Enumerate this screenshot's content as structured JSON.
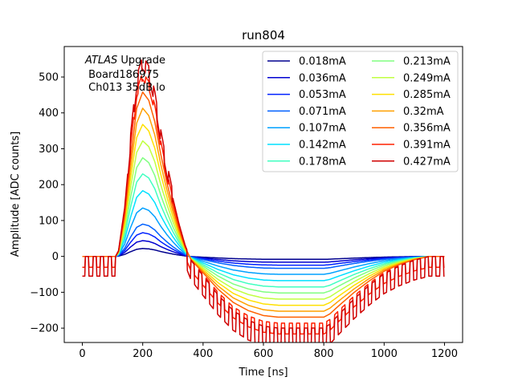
{
  "chart_data": {
    "type": "line",
    "title": "run804",
    "xlabel": "Time [ns]",
    "ylabel": "Amplitude [ADC counts]",
    "xlim": [
      -60,
      1260
    ],
    "ylim": [
      -240,
      585
    ],
    "xticks": [
      0,
      200,
      400,
      600,
      800,
      1000,
      1200
    ],
    "yticks": [
      -200,
      -100,
      0,
      100,
      200,
      300,
      400,
      500
    ],
    "xtick_labels": [
      "0",
      "200",
      "400",
      "600",
      "800",
      "1000",
      "1200"
    ],
    "ytick_labels": [
      "−200",
      "−100",
      "0",
      "100",
      "200",
      "300",
      "400",
      "500"
    ],
    "annotation": {
      "italic": "ATLAS",
      "rest": " Upgrade",
      "line2": " Board186975",
      "line3": " Ch013 35dB lo"
    },
    "legend_placement": "top-right",
    "legend_columns": 2,
    "grid": false,
    "shape": {
      "description": "pulse shape: positive peak near 200 ns, undershoot minimum near 600-800 ns, recovery to 0 by ~1150 ns",
      "x": [
        0,
        110,
        120,
        140,
        160,
        180,
        200,
        220,
        240,
        260,
        280,
        300,
        320,
        340,
        360,
        380,
        400,
        450,
        500,
        550,
        600,
        650,
        700,
        750,
        800,
        820,
        850,
        900,
        950,
        1000,
        1050,
        1100,
        1150,
        1200
      ],
      "y": [
        0,
        0,
        0.03,
        0.25,
        0.6,
        0.9,
        1.0,
        0.95,
        0.82,
        0.62,
        0.45,
        0.3,
        0.17,
        0.06,
        -0.02,
        -0.06,
        -0.1,
        -0.2,
        -0.28,
        -0.33,
        -0.36,
        -0.37,
        -0.37,
        -0.37,
        -0.37,
        -0.35,
        -0.3,
        -0.22,
        -0.15,
        -0.09,
        -0.05,
        -0.02,
        0,
        0
      ]
    },
    "series": [
      {
        "name": "0.018mA",
        "color": "#00008f",
        "peak": 22
      },
      {
        "name": "0.036mA",
        "color": "#0000d0",
        "peak": 44
      },
      {
        "name": "0.053mA",
        "color": "#0020ff",
        "peak": 66
      },
      {
        "name": "0.071mA",
        "color": "#0060ff",
        "peak": 90
      },
      {
        "name": "0.107mA",
        "color": "#00a0ff",
        "peak": 135
      },
      {
        "name": "0.142mA",
        "color": "#00e0ff",
        "peak": 183
      },
      {
        "name": "0.178mA",
        "color": "#40ffc0",
        "peak": 230
      },
      {
        "name": "0.213mA",
        "color": "#80ff80",
        "peak": 275
      },
      {
        "name": "0.249mA",
        "color": "#c0ff40",
        "peak": 322
      },
      {
        "name": "0.285mA",
        "color": "#ffe000",
        "peak": 368
      },
      {
        "name": "0.32mA",
        "color": "#ffa000",
        "peak": 413
      },
      {
        "name": "0.356mA",
        "color": "#ff6000",
        "peak": 458
      },
      {
        "name": "0.391mA",
        "color": "#ff2000",
        "peak": 503
      },
      {
        "name": "0.427mA",
        "color": "#d00000",
        "peak": 540
      }
    ]
  }
}
